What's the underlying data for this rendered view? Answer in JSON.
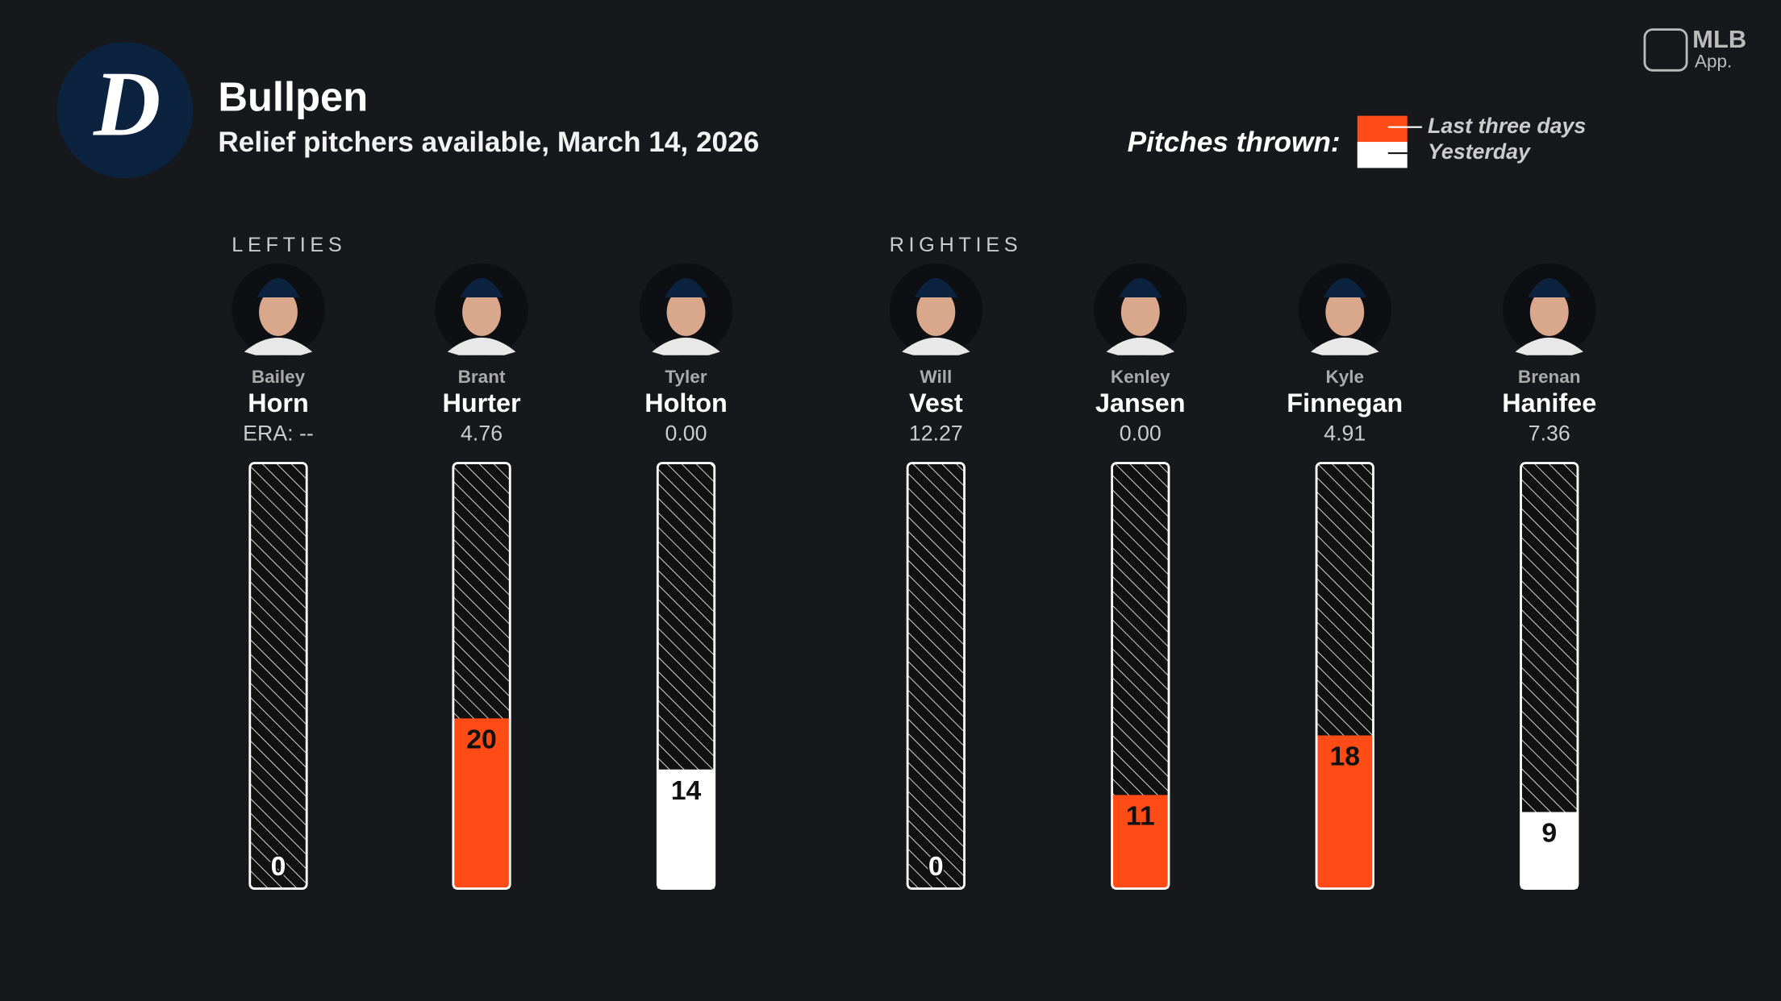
{
  "chart_data": {
    "type": "bar",
    "title": "Bullpen",
    "subtitle": "Relief pitchers available, March 14, 2026",
    "team_logo": "D",
    "brand": "MLB",
    "brand_sub": "App.",
    "legend_title": "Pitches thrown:",
    "groups": [
      {
        "label": "LEFTIES",
        "players": [
          {
            "first": "Bailey",
            "last": "Horn",
            "era": "ERA: --"
          },
          {
            "first": "Brant",
            "last": "Hurter",
            "era": "4.76"
          },
          {
            "first": "Tyler",
            "last": "Holton",
            "era": "0.00"
          }
        ]
      },
      {
        "label": "RIGHTIES",
        "players": [
          {
            "first": "Will",
            "last": "Vest",
            "era": "12.27"
          },
          {
            "first": "Kenley",
            "last": "Jansen",
            "era": "0.00"
          },
          {
            "first": "Kyle",
            "last": "Finnegan",
            "era": "4.91"
          },
          {
            "first": "Brenan",
            "last": "Hanifee",
            "era": "7.36"
          }
        ]
      }
    ],
    "series": [
      {
        "name": "Last three days",
        "color": "#ff4c17",
        "values": [
          0,
          20,
          null,
          0,
          11,
          18,
          null
        ]
      },
      {
        "name": "Yesterday",
        "color": "#ffffff",
        "values": [
          null,
          null,
          14,
          null,
          null,
          null,
          9
        ]
      }
    ],
    "ylim": [
      0,
      50
    ]
  }
}
